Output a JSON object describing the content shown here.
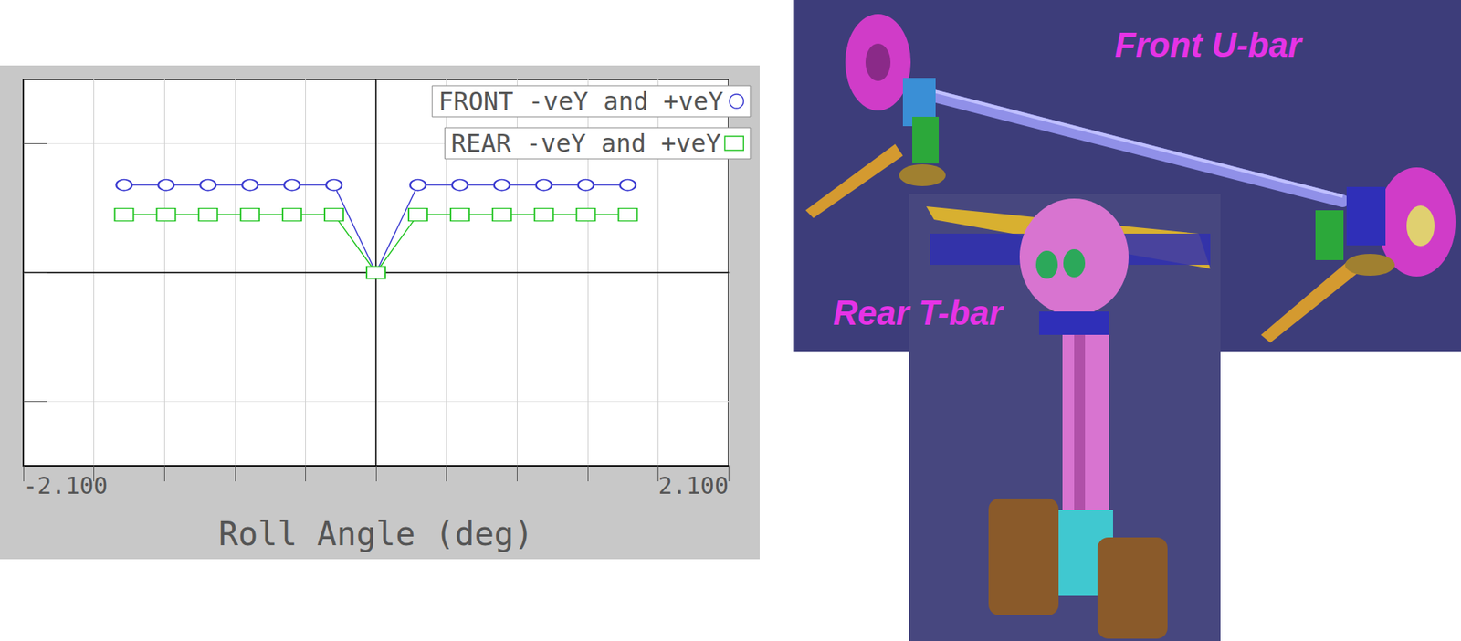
{
  "chart_data": {
    "type": "line",
    "xlabel": "Roll Angle (deg)",
    "x": [
      -1.5,
      -1.25,
      -1.0,
      -0.75,
      -0.5,
      -0.25,
      0,
      0.25,
      0.5,
      0.75,
      1.0,
      1.25,
      1.5
    ],
    "series": [
      {
        "name": "FRONT -veY and +veY",
        "color": "#3a3ad0",
        "marker": "circle",
        "line_style": "solid",
        "values": [
          0.68,
          0.68,
          0.68,
          0.68,
          0.68,
          0.68,
          0,
          0.68,
          0.68,
          0.68,
          0.68,
          0.68,
          0.68
        ]
      },
      {
        "name": "REAR -veY and +veY",
        "color": "#22c422",
        "marker": "square",
        "line_style": "solid",
        "values": [
          0.45,
          0.45,
          0.45,
          0.45,
          0.45,
          0.45,
          0,
          0.45,
          0.45,
          0.45,
          0.45,
          0.45,
          0.45
        ]
      }
    ],
    "xlim": [
      -2.1,
      2.1
    ],
    "xticks": [
      {
        "value": -2.1,
        "label": "-2.100"
      },
      {
        "value": 2.1,
        "label": "2.100"
      }
    ],
    "ylim": [
      -1.5,
      1.5
    ],
    "yticks": [
      -1,
      0,
      1
    ],
    "grid": true,
    "tick_labels": "x",
    "legend": "top-right"
  },
  "figures": [
    {
      "title": "Front U-bar"
    },
    {
      "title": "Rear T-bar"
    }
  ]
}
